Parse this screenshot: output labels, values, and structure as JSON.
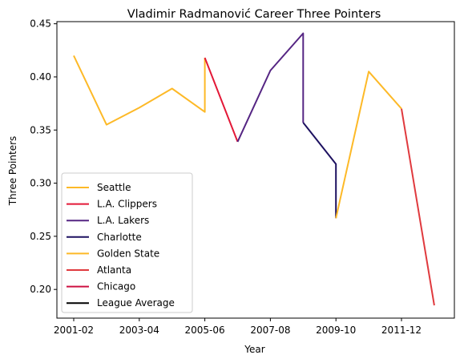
{
  "chart_data": {
    "type": "line",
    "title": "Vladimir Radmanović Career Three Pointers",
    "xlabel": "Year",
    "ylabel": "Three Pointers",
    "x_categories": [
      "2001-02",
      "2002-03",
      "2003-04",
      "2004-05",
      "2005-06",
      "2006-07",
      "2007-08",
      "2008-09",
      "2009-10",
      "2010-11",
      "2011-12",
      "2012-13"
    ],
    "x_tick_labels": [
      "2001-02",
      "2003-04",
      "2005-06",
      "2007-08",
      "2009-10",
      "2011-12"
    ],
    "y_ticks": [
      "0.20",
      "0.25",
      "0.30",
      "0.35",
      "0.40",
      "0.45"
    ],
    "ylim": [
      0.173,
      0.452
    ],
    "grid": false,
    "legend_position": "lower-left",
    "series": [
      {
        "name": "Seattle",
        "color": "#FDB927",
        "points": [
          [
            "2001-02",
            0.42
          ],
          [
            "2002-03",
            0.355
          ],
          [
            "2003-04",
            0.371
          ],
          [
            "2004-05",
            0.389
          ],
          [
            "2005-06",
            0.367
          ],
          [
            "2005-06",
            0.418
          ]
        ]
      },
      {
        "name": "L.A. Clippers",
        "color": "#E31837",
        "points": [
          [
            "2005-06",
            0.418
          ],
          [
            "2006-07",
            0.339
          ]
        ]
      },
      {
        "name": "L.A. Lakers",
        "color": "#552583",
        "points": [
          [
            "2006-07",
            0.339
          ],
          [
            "2007-08",
            0.406
          ],
          [
            "2008-09",
            0.441
          ],
          [
            "2008-09",
            0.357
          ]
        ]
      },
      {
        "name": "Charlotte",
        "color": "#1D1160",
        "points": [
          [
            "2008-09",
            0.357
          ],
          [
            "2009-10",
            0.318
          ],
          [
            "2009-10",
            0.267
          ]
        ]
      },
      {
        "name": "Golden State",
        "color": "#FDB927",
        "points": [
          [
            "2009-10",
            0.267
          ],
          [
            "2010-11",
            0.405
          ],
          [
            "2011-12",
            0.37
          ]
        ]
      },
      {
        "name": "Atlanta",
        "color": "#E03A3E",
        "points": [
          [
            "2011-12",
            0.37
          ],
          [
            "2012-13",
            0.185
          ]
        ]
      },
      {
        "name": "Chicago",
        "color": "#CE1141",
        "points": []
      },
      {
        "name": "League Average",
        "color": "#000000",
        "points": []
      }
    ]
  }
}
